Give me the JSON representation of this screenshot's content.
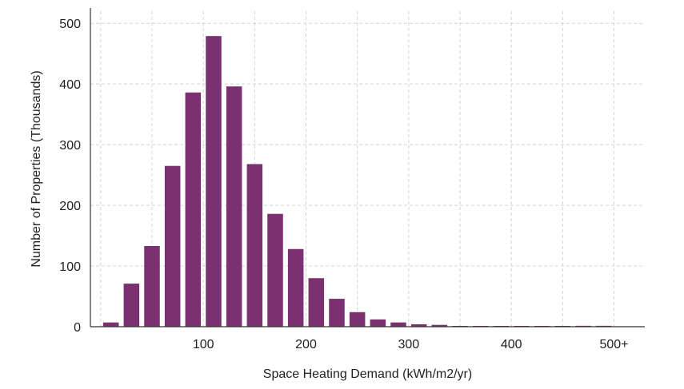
{
  "chart_data": {
    "type": "bar",
    "xlabel": "Space Heating Demand (kWh/m2/yr)",
    "ylabel": "Number of Properties (Thousands)",
    "ylim": [
      0,
      520
    ],
    "yticks": [
      0,
      100,
      200,
      300,
      400,
      500
    ],
    "xlim": [
      -10,
      530
    ],
    "xticks": [
      {
        "value": 100,
        "label": "100"
      },
      {
        "value": 200,
        "label": "200"
      },
      {
        "value": 300,
        "label": "300"
      },
      {
        "value": 400,
        "label": "400"
      },
      {
        "value": 500,
        "label": "500+"
      }
    ],
    "bin_width": 20,
    "grid": true,
    "colors": {
      "bar": "#7b3072",
      "grid": "#d4d4d4",
      "axis": "#333333"
    },
    "x": [
      10,
      30,
      50,
      70,
      90,
      110,
      130,
      150,
      170,
      190,
      210,
      230,
      250,
      270,
      290,
      310,
      330,
      350,
      370,
      390,
      410,
      430,
      450,
      470,
      490
    ],
    "values": [
      7,
      71,
      133,
      265,
      386,
      479,
      396,
      268,
      186,
      128,
      80,
      46,
      24,
      12,
      7,
      4,
      3,
      0.5,
      0.5,
      0.5,
      0.5,
      0.5,
      0.5,
      1.5,
      1.5
    ]
  }
}
